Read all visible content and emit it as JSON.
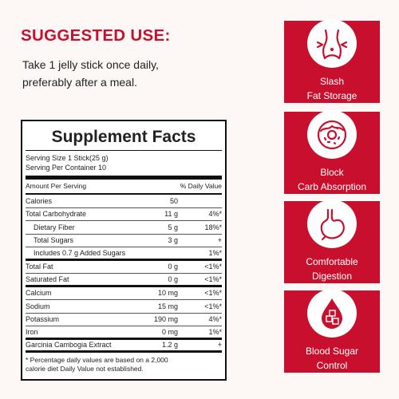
{
  "usage": {
    "heading": "SUGGESTED USE:",
    "line1": "Take 1 jelly stick once daily,",
    "line2": "preferably after a meal."
  },
  "facts": {
    "title": "Supplement Facts",
    "serving_size": "Serving Size 1 Stick(25 g)",
    "servings_per_container": "Serving Per Container 10",
    "amount_header": "Amount Per Serving",
    "dv_header": "% Daily Value",
    "rows": [
      {
        "name": "Calories",
        "amount": "50",
        "dv": ""
      },
      {
        "name": "Total Carbohydrate",
        "amount": "11 g",
        "dv": "4%*"
      },
      {
        "name": "Dietary Fiber",
        "amount": "5 g",
        "dv": "18%*"
      },
      {
        "name": "Total Sugars",
        "amount": "3 g",
        "dv": "+"
      },
      {
        "name": "Includes 0.7 g Added Sugars",
        "amount": "",
        "dv": "1%*"
      },
      {
        "name": "Total Fat",
        "amount": "0 g",
        "dv": "<1%*"
      },
      {
        "name": "Saturated Fat",
        "amount": "0 g",
        "dv": "<1%*"
      },
      {
        "name": "Calcium",
        "amount": "10 mg",
        "dv": "<1%*"
      },
      {
        "name": "Sodium",
        "amount": "15 mg",
        "dv": "<1%*"
      },
      {
        "name": "Potassium",
        "amount": "190 mg",
        "dv": "4%*"
      },
      {
        "name": "Iron",
        "amount": "0 mg",
        "dv": "1%*"
      },
      {
        "name": "Garcinia Cambogia Extract",
        "amount": "1.2 g",
        "dv": "+"
      }
    ],
    "footnote_line1": "* Percentage daily values are based on a 2,000",
    "footnote_line2": "calorie diet Daily Value not established."
  },
  "benefits": [
    {
      "icon": "waist-icon",
      "line1": "Slash",
      "line2": "Fat Storage"
    },
    {
      "icon": "donut-icon",
      "line1": "Block",
      "line2": "Carb Absorption"
    },
    {
      "icon": "stomach-icon",
      "line1": "Comfortable",
      "line2": "Digestion"
    },
    {
      "icon": "blood-drop-icon",
      "line1": "Blood Sugar",
      "line2": "Control"
    }
  ],
  "colors": {
    "accent": "#c8102e",
    "background": "#fdf7f5",
    "panel_border": "#111111"
  }
}
